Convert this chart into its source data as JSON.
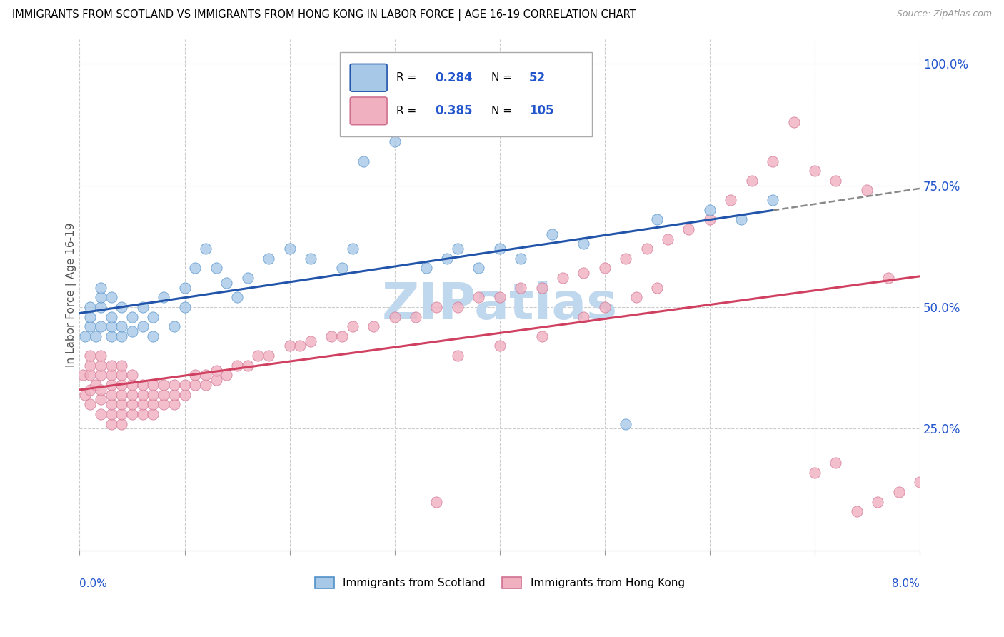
{
  "title": "IMMIGRANTS FROM SCOTLAND VS IMMIGRANTS FROM HONG KONG IN LABOR FORCE | AGE 16-19 CORRELATION CHART",
  "source": "Source: ZipAtlas.com",
  "ylabel": "In Labor Force | Age 16-19",
  "right_ytick_vals": [
    0.25,
    0.5,
    0.75,
    1.0
  ],
  "right_ytick_labels": [
    "25.0%",
    "50.0%",
    "75.0%",
    "100.0%"
  ],
  "xlim": [
    0.0,
    0.08
  ],
  "ylim": [
    0.0,
    1.05
  ],
  "scotland_R": 0.284,
  "scotland_N": 52,
  "hongkong_R": 0.385,
  "hongkong_N": 105,
  "scotland_color": "#a8c8e8",
  "scotland_edge": "#5090c8",
  "scotland_line_color": "#2255aa",
  "hongkong_color": "#f0b0c0",
  "hongkong_edge": "#d07090",
  "hongkong_line_color": "#d04060",
  "legend_label_scotland": "Immigrants from Scotland",
  "legend_label_hongkong": "Immigrants from Hong Kong",
  "watermark": "ZIPatlas",
  "watermark_color": "#c0d8ee",
  "r_n_color": "#2255cc",
  "note_color": "#555555",
  "scotland_x": [
    0.0005,
    0.001,
    0.001,
    0.001,
    0.0015,
    0.002,
    0.002,
    0.002,
    0.002,
    0.003,
    0.003,
    0.003,
    0.003,
    0.004,
    0.004,
    0.004,
    0.005,
    0.005,
    0.006,
    0.006,
    0.007,
    0.007,
    0.008,
    0.009,
    0.01,
    0.01,
    0.011,
    0.012,
    0.013,
    0.014,
    0.015,
    0.016,
    0.018,
    0.02,
    0.022,
    0.025,
    0.026,
    0.027,
    0.03,
    0.033,
    0.035,
    0.036,
    0.038,
    0.04,
    0.042,
    0.045,
    0.048,
    0.052,
    0.055,
    0.06,
    0.063,
    0.066
  ],
  "scotland_y": [
    0.44,
    0.46,
    0.48,
    0.5,
    0.44,
    0.46,
    0.5,
    0.52,
    0.54,
    0.44,
    0.46,
    0.48,
    0.52,
    0.44,
    0.46,
    0.5,
    0.45,
    0.48,
    0.46,
    0.5,
    0.44,
    0.48,
    0.52,
    0.46,
    0.5,
    0.54,
    0.58,
    0.62,
    0.58,
    0.55,
    0.52,
    0.56,
    0.6,
    0.62,
    0.6,
    0.58,
    0.62,
    0.8,
    0.84,
    0.58,
    0.6,
    0.62,
    0.58,
    0.62,
    0.6,
    0.65,
    0.63,
    0.26,
    0.68,
    0.7,
    0.68,
    0.72
  ],
  "hongkong_x": [
    0.0003,
    0.0005,
    0.001,
    0.001,
    0.001,
    0.001,
    0.001,
    0.0015,
    0.002,
    0.002,
    0.002,
    0.002,
    0.002,
    0.002,
    0.003,
    0.003,
    0.003,
    0.003,
    0.003,
    0.003,
    0.003,
    0.004,
    0.004,
    0.004,
    0.004,
    0.004,
    0.004,
    0.004,
    0.005,
    0.005,
    0.005,
    0.005,
    0.005,
    0.006,
    0.006,
    0.006,
    0.006,
    0.007,
    0.007,
    0.007,
    0.007,
    0.008,
    0.008,
    0.008,
    0.009,
    0.009,
    0.009,
    0.01,
    0.01,
    0.011,
    0.011,
    0.012,
    0.012,
    0.013,
    0.013,
    0.014,
    0.015,
    0.016,
    0.017,
    0.018,
    0.02,
    0.021,
    0.022,
    0.024,
    0.025,
    0.026,
    0.028,
    0.03,
    0.032,
    0.034,
    0.036,
    0.038,
    0.04,
    0.042,
    0.044,
    0.046,
    0.048,
    0.05,
    0.052,
    0.054,
    0.056,
    0.058,
    0.06,
    0.062,
    0.064,
    0.066,
    0.068,
    0.07,
    0.072,
    0.075,
    0.05,
    0.053,
    0.055,
    0.048,
    0.044,
    0.04,
    0.036,
    0.034,
    0.07,
    0.072,
    0.074,
    0.076,
    0.078,
    0.08,
    0.077
  ],
  "hongkong_y": [
    0.36,
    0.32,
    0.3,
    0.33,
    0.36,
    0.38,
    0.4,
    0.34,
    0.28,
    0.31,
    0.33,
    0.36,
    0.38,
    0.4,
    0.26,
    0.28,
    0.3,
    0.32,
    0.34,
    0.36,
    0.38,
    0.26,
    0.28,
    0.3,
    0.32,
    0.34,
    0.36,
    0.38,
    0.28,
    0.3,
    0.32,
    0.34,
    0.36,
    0.28,
    0.3,
    0.32,
    0.34,
    0.28,
    0.3,
    0.32,
    0.34,
    0.3,
    0.32,
    0.34,
    0.3,
    0.32,
    0.34,
    0.32,
    0.34,
    0.34,
    0.36,
    0.34,
    0.36,
    0.35,
    0.37,
    0.36,
    0.38,
    0.38,
    0.4,
    0.4,
    0.42,
    0.42,
    0.43,
    0.44,
    0.44,
    0.46,
    0.46,
    0.48,
    0.48,
    0.5,
    0.5,
    0.52,
    0.52,
    0.54,
    0.54,
    0.56,
    0.57,
    0.58,
    0.6,
    0.62,
    0.64,
    0.66,
    0.68,
    0.72,
    0.76,
    0.8,
    0.88,
    0.78,
    0.76,
    0.74,
    0.5,
    0.52,
    0.54,
    0.48,
    0.44,
    0.42,
    0.4,
    0.1,
    0.16,
    0.18,
    0.08,
    0.1,
    0.12,
    0.14,
    0.56
  ]
}
